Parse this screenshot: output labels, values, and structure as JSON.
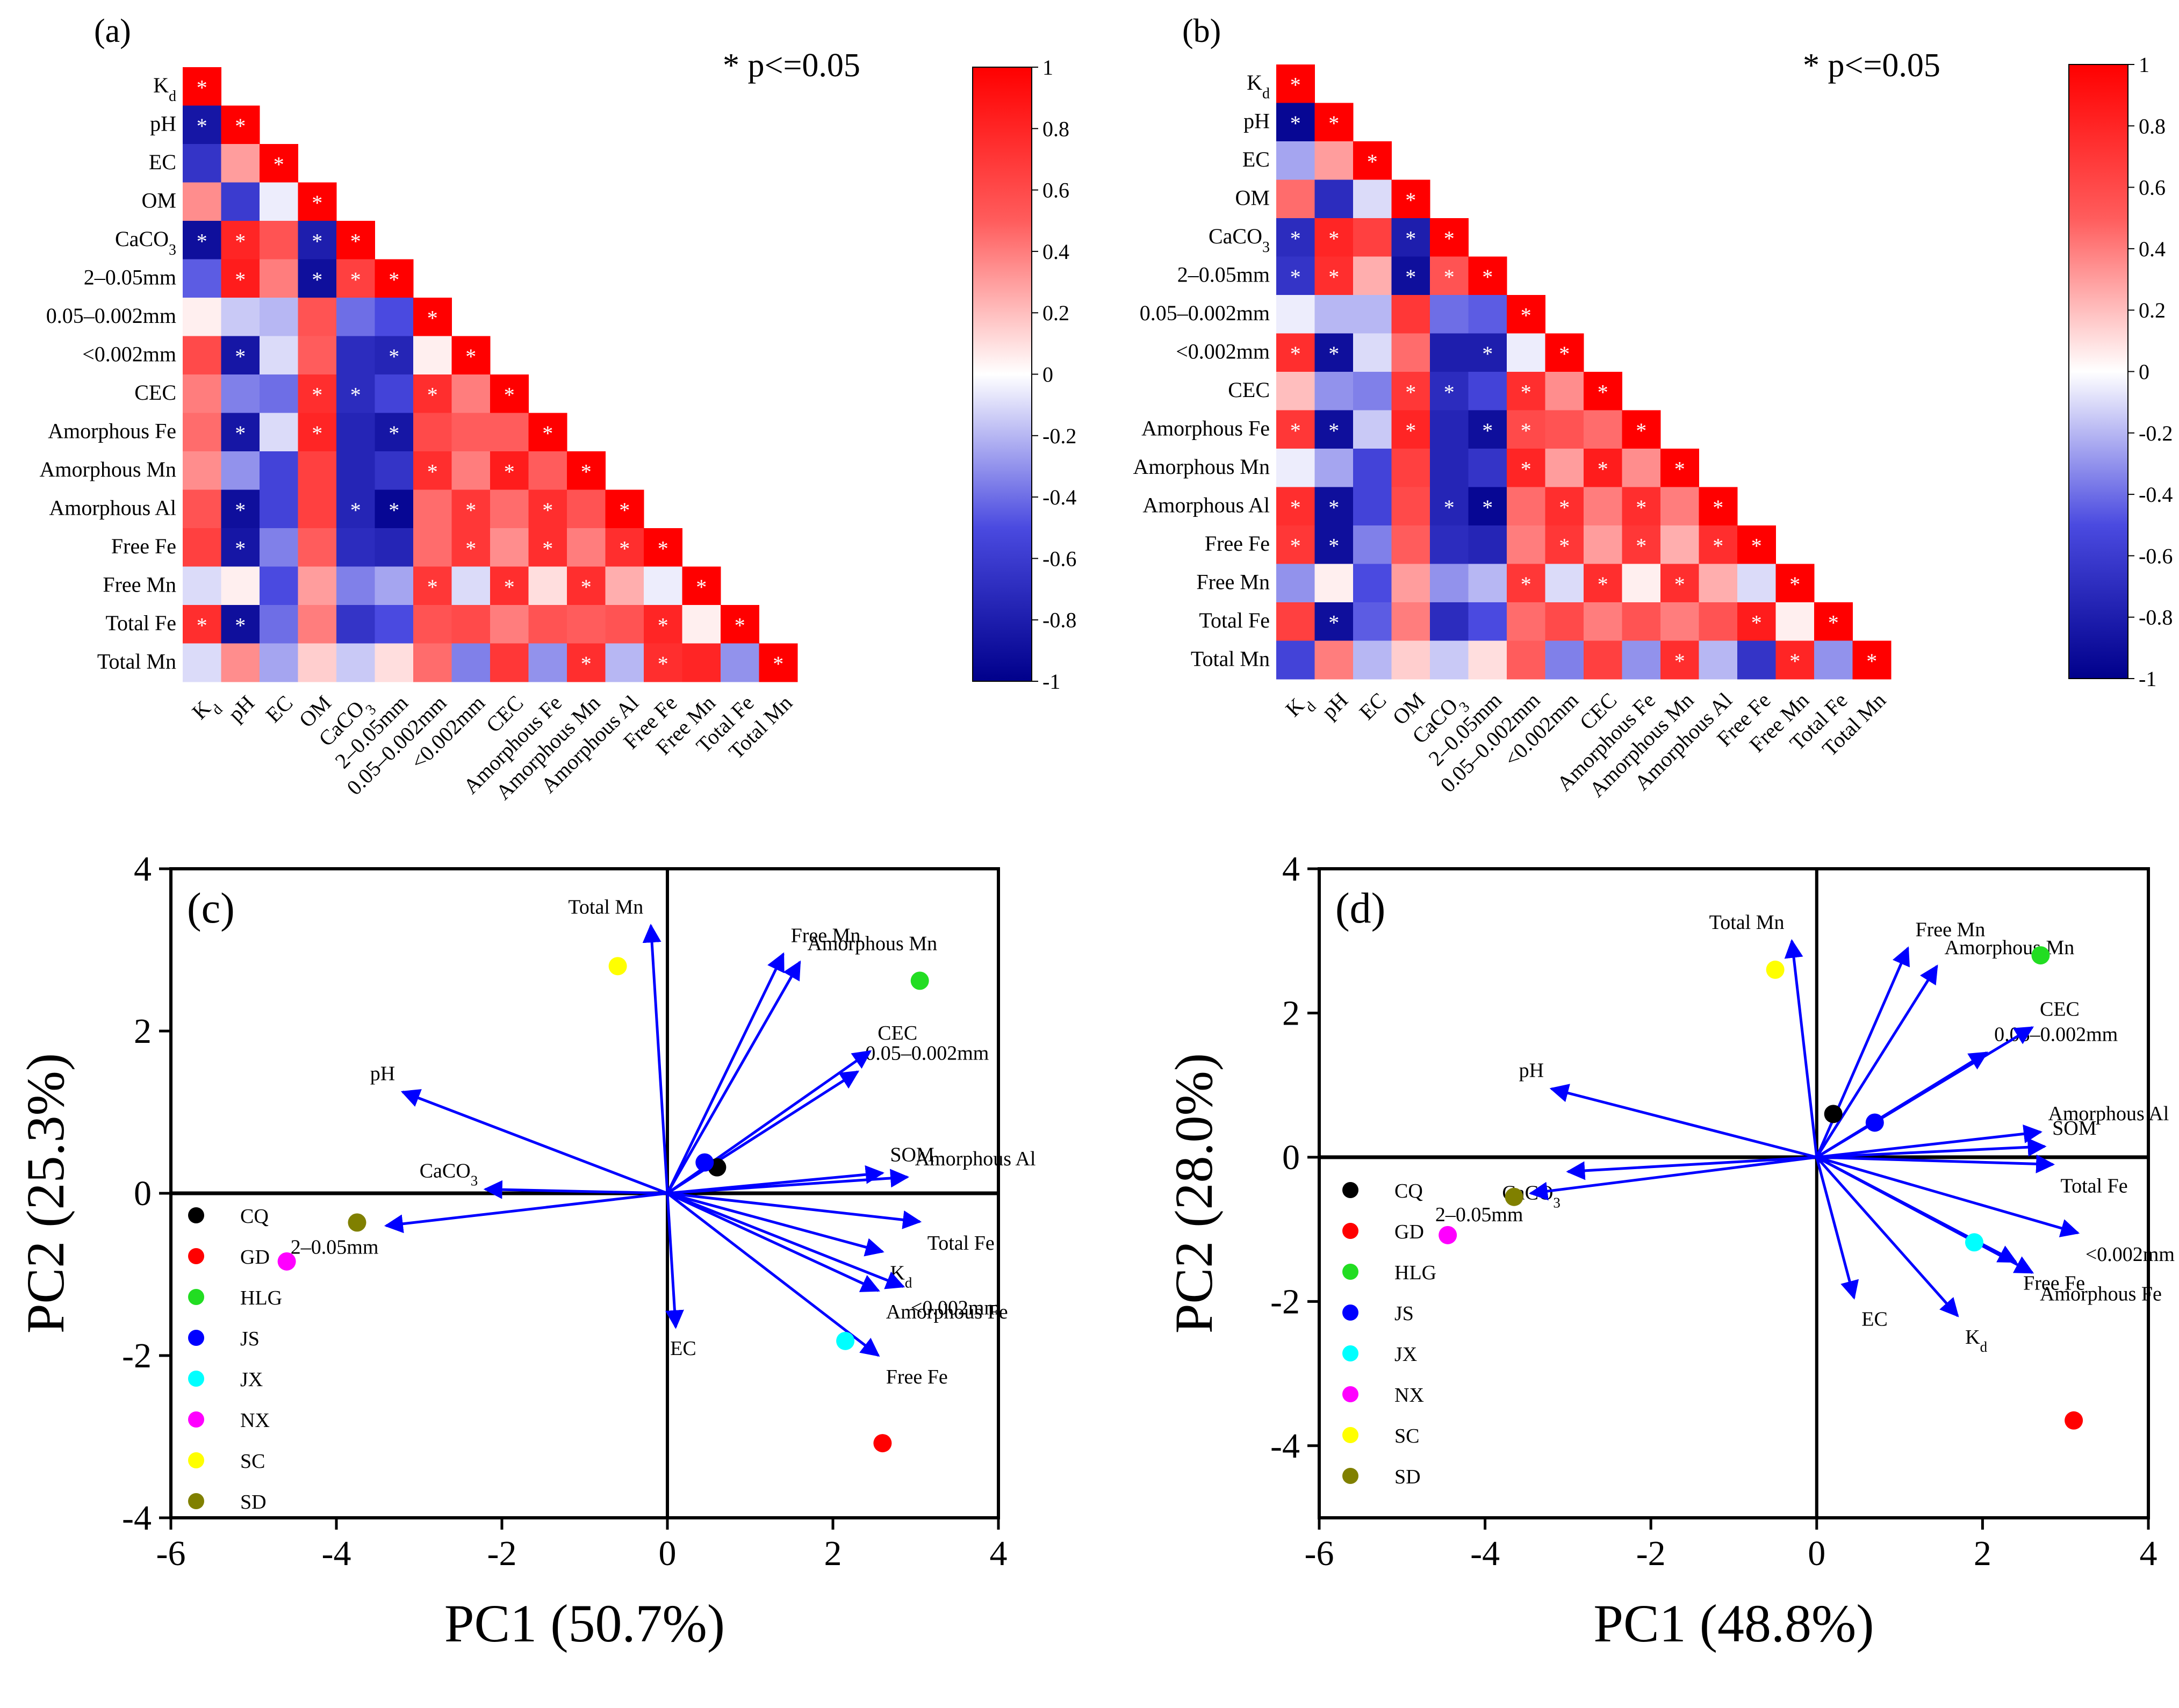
{
  "chart_data": [
    {
      "panel": "(a)",
      "type": "heatmap",
      "significance_note": "* p<=0.05",
      "variables": [
        "K_d",
        "pH",
        "EC",
        "OM",
        "CaCO_3",
        "2–0.05mm",
        "0.05–0.002mm",
        "<0.002mm",
        "CEC",
        "Amorphous Fe",
        "Amorphous Mn",
        "Amorphous Al",
        "Free Fe",
        "Free Mn",
        "Total Fe",
        "Total Mn"
      ],
      "matrix": [
        [
          1
        ],
        [
          -0.85,
          1
        ],
        [
          -0.65,
          0.3,
          1
        ],
        [
          0.35,
          -0.6,
          -0.05,
          1
        ],
        [
          -0.9,
          0.8,
          0.55,
          -0.8,
          1
        ],
        [
          -0.45,
          0.85,
          0.4,
          -0.9,
          0.65,
          1
        ],
        [
          0.05,
          -0.15,
          -0.2,
          0.55,
          -0.4,
          -0.5,
          1
        ],
        [
          0.6,
          -0.85,
          -0.1,
          0.5,
          -0.7,
          -0.75,
          0.05,
          1
        ],
        [
          0.4,
          -0.35,
          -0.4,
          0.75,
          -0.7,
          -0.55,
          0.75,
          0.4,
          1
        ],
        [
          0.45,
          -0.85,
          -0.1,
          0.8,
          -0.75,
          -0.85,
          0.6,
          0.5,
          0.5,
          1
        ],
        [
          0.35,
          -0.3,
          -0.55,
          0.65,
          -0.75,
          -0.65,
          0.75,
          0.4,
          0.85,
          0.5,
          1
        ],
        [
          0.55,
          -0.9,
          -0.55,
          0.65,
          -0.75,
          -0.95,
          0.45,
          0.7,
          0.45,
          0.75,
          0.55,
          1
        ],
        [
          0.65,
          -0.85,
          -0.35,
          0.5,
          -0.7,
          -0.75,
          0.45,
          0.7,
          0.35,
          0.75,
          0.4,
          0.75,
          1
        ],
        [
          -0.1,
          0.05,
          -0.5,
          0.3,
          -0.35,
          -0.25,
          0.7,
          -0.1,
          0.75,
          0.1,
          0.75,
          0.25,
          -0.05,
          1
        ],
        [
          0.75,
          -0.9,
          -0.4,
          0.4,
          -0.65,
          -0.5,
          0.55,
          0.6,
          0.4,
          0.55,
          0.5,
          0.55,
          0.8,
          0.05,
          1
        ],
        [
          -0.1,
          0.35,
          -0.25,
          0.15,
          -0.15,
          0.1,
          0.45,
          -0.35,
          0.7,
          -0.3,
          0.75,
          -0.2,
          0.75,
          0.8,
          -0.3,
          1
        ]
      ],
      "significant": [
        [
          1
        ],
        [
          1,
          1
        ],
        [
          0,
          0,
          1
        ],
        [
          0,
          0,
          0,
          1
        ],
        [
          1,
          1,
          0,
          1,
          1
        ],
        [
          0,
          1,
          0,
          1,
          1,
          1
        ],
        [
          0,
          0,
          0,
          0,
          0,
          0,
          1
        ],
        [
          0,
          1,
          0,
          0,
          0,
          1,
          0,
          1
        ],
        [
          0,
          0,
          0,
          1,
          1,
          0,
          1,
          0,
          1
        ],
        [
          0,
          1,
          0,
          1,
          0,
          1,
          0,
          0,
          0,
          1
        ],
        [
          0,
          0,
          0,
          0,
          0,
          0,
          1,
          0,
          1,
          0,
          1
        ],
        [
          0,
          1,
          0,
          0,
          1,
          1,
          0,
          1,
          0,
          1,
          0,
          1
        ],
        [
          0,
          1,
          0,
          0,
          0,
          0,
          0,
          1,
          0,
          1,
          0,
          1,
          1
        ],
        [
          0,
          0,
          0,
          0,
          0,
          0,
          1,
          0,
          1,
          0,
          1,
          0,
          0,
          1
        ],
        [
          1,
          1,
          0,
          0,
          0,
          0,
          0,
          0,
          0,
          0,
          0,
          0,
          1,
          0,
          1
        ],
        [
          0,
          0,
          0,
          0,
          0,
          0,
          0,
          0,
          0,
          0,
          1,
          0,
          1,
          0,
          0,
          1
        ]
      ],
      "colorbar_ticks": [
        "1",
        "0.8",
        "0.6",
        "0.4",
        "0.2",
        "0",
        "-0.2",
        "-0.4",
        "-0.6",
        "-0.8",
        "-1"
      ],
      "color_scale": {
        "negative": "#00008b",
        "mid_negative": "#4a4ae0",
        "zero": "#ffffff",
        "mid_positive": "#ff5c5c",
        "positive": "#ff0000"
      }
    },
    {
      "panel": "(b)",
      "type": "heatmap",
      "significance_note": "* p<=0.05",
      "variables": [
        "K_d",
        "pH",
        "EC",
        "OM",
        "CaCO_3",
        "2–0.05mm",
        "0.05–0.002mm",
        "<0.002mm",
        "CEC",
        "Amorphous Fe",
        "Amorphous Mn",
        "Amorphous Al",
        "Free Fe",
        "Free Mn",
        "Total Fe",
        "Total Mn"
      ],
      "matrix": [
        [
          1
        ],
        [
          -0.95,
          1
        ],
        [
          -0.25,
          0.3,
          1
        ],
        [
          0.45,
          -0.7,
          -0.1,
          1
        ],
        [
          -0.7,
          0.8,
          0.65,
          -0.8,
          1
        ],
        [
          -0.65,
          0.75,
          0.25,
          -0.9,
          0.55,
          1
        ],
        [
          -0.05,
          -0.2,
          -0.2,
          0.7,
          -0.4,
          -0.45,
          1
        ],
        [
          0.75,
          -0.9,
          -0.1,
          0.45,
          -0.8,
          -0.8,
          -0.05,
          1
        ],
        [
          0.2,
          -0.3,
          -0.35,
          0.7,
          -0.7,
          -0.55,
          0.75,
          0.35,
          1
        ],
        [
          0.7,
          -0.9,
          -0.15,
          0.8,
          -0.75,
          -0.9,
          0.6,
          0.55,
          0.45,
          1
        ],
        [
          -0.05,
          -0.25,
          -0.55,
          0.65,
          -0.75,
          -0.65,
          0.8,
          0.3,
          0.85,
          0.35,
          1
        ],
        [
          0.75,
          -0.9,
          -0.55,
          0.6,
          -0.75,
          -0.95,
          0.45,
          0.75,
          0.4,
          0.75,
          0.4,
          1
        ],
        [
          0.7,
          -0.9,
          -0.35,
          0.5,
          -0.7,
          -0.75,
          0.4,
          0.7,
          0.3,
          0.7,
          0.25,
          0.75,
          1
        ],
        [
          -0.3,
          0.05,
          -0.5,
          0.3,
          -0.3,
          -0.2,
          0.7,
          -0.1,
          0.75,
          0.05,
          0.75,
          0.25,
          -0.1,
          1
        ],
        [
          0.65,
          -0.9,
          -0.45,
          0.4,
          -0.7,
          -0.5,
          0.45,
          0.6,
          0.4,
          0.55,
          0.4,
          0.55,
          0.85,
          0.05,
          1
        ],
        [
          -0.55,
          0.4,
          -0.2,
          0.15,
          -0.15,
          0.1,
          0.5,
          -0.35,
          0.65,
          -0.3,
          0.75,
          -0.2,
          -0.65,
          0.8,
          -0.3,
          1
        ]
      ],
      "significant": [
        [
          1
        ],
        [
          1,
          1
        ],
        [
          0,
          0,
          1
        ],
        [
          0,
          0,
          0,
          1
        ],
        [
          1,
          1,
          0,
          1,
          1
        ],
        [
          1,
          1,
          0,
          1,
          1,
          1
        ],
        [
          0,
          0,
          0,
          0,
          0,
          0,
          1
        ],
        [
          1,
          1,
          0,
          0,
          0,
          1,
          0,
          1
        ],
        [
          0,
          0,
          0,
          1,
          1,
          0,
          1,
          0,
          1
        ],
        [
          1,
          1,
          0,
          1,
          0,
          1,
          1,
          0,
          0,
          1
        ],
        [
          0,
          0,
          0,
          0,
          0,
          0,
          1,
          0,
          1,
          0,
          1
        ],
        [
          1,
          1,
          0,
          0,
          1,
          1,
          0,
          1,
          0,
          1,
          0,
          1
        ],
        [
          1,
          1,
          0,
          0,
          0,
          0,
          0,
          1,
          0,
          1,
          0,
          1,
          1
        ],
        [
          0,
          0,
          0,
          0,
          0,
          0,
          1,
          0,
          1,
          0,
          1,
          0,
          0,
          1
        ],
        [
          0,
          1,
          0,
          0,
          0,
          0,
          0,
          0,
          0,
          0,
          0,
          0,
          1,
          0,
          1
        ],
        [
          0,
          0,
          0,
          0,
          0,
          0,
          0,
          0,
          0,
          0,
          1,
          0,
          0,
          1,
          0,
          1
        ]
      ],
      "colorbar_ticks": [
        "1",
        "0.8",
        "0.6",
        "0.4",
        "0.2",
        "0",
        "-0.2",
        "-0.4",
        "-0.6",
        "-0.8",
        "-1"
      ],
      "color_scale": {
        "negative": "#00008b",
        "mid_negative": "#4a4ae0",
        "zero": "#ffffff",
        "mid_positive": "#ff5c5c",
        "positive": "#ff0000"
      }
    },
    {
      "panel": "(c)",
      "type": "scatter",
      "subtype": "pca-biplot",
      "xlabel": "PC1 (50.7%)",
      "ylabel": "PC2 (25.3%)",
      "xlim": [
        -6,
        4
      ],
      "ylim": [
        -4,
        4
      ],
      "xticks": [
        -6,
        -4,
        -2,
        0,
        2,
        4
      ],
      "yticks": [
        -4,
        -2,
        0,
        2,
        4
      ],
      "points": [
        {
          "label": "CQ",
          "x": 0.6,
          "y": 0.32,
          "color": "#000000"
        },
        {
          "label": "GD",
          "x": 2.6,
          "y": -3.08,
          "color": "#ff0000"
        },
        {
          "label": "HLG",
          "x": 3.05,
          "y": 2.62,
          "color": "#22dd22"
        },
        {
          "label": "JS",
          "x": 0.45,
          "y": 0.38,
          "color": "#0000ff"
        },
        {
          "label": "JX",
          "x": 2.15,
          "y": -1.82,
          "color": "#00ffff"
        },
        {
          "label": "NX",
          "x": -4.6,
          "y": -0.84,
          "color": "#ff00ff"
        },
        {
          "label": "SC",
          "x": -0.6,
          "y": 2.8,
          "color": "#ffff00"
        },
        {
          "label": "SD",
          "x": -3.75,
          "y": -0.36,
          "color": "#808000"
        }
      ],
      "loadings": [
        {
          "label": "Total Mn",
          "x": -0.2,
          "y": 3.3
        },
        {
          "label": "Free Mn",
          "x": 1.4,
          "y": 2.95
        },
        {
          "label": "Amorphous Mn",
          "x": 1.6,
          "y": 2.85
        },
        {
          "label": "0.05–0.002mm",
          "x": 2.3,
          "y": 1.5
        },
        {
          "label": "CEC",
          "x": 2.45,
          "y": 1.75
        },
        {
          "label": "pH",
          "x": -3.2,
          "y": 1.25
        },
        {
          "label": "CaCO_3",
          "x": -2.2,
          "y": 0.05
        },
        {
          "label": "2–0.05mm",
          "x": -3.4,
          "y": -0.4
        },
        {
          "label": "SOM",
          "x": 2.6,
          "y": 0.25
        },
        {
          "label": "Amorphous Al",
          "x": 2.9,
          "y": 0.2
        },
        {
          "label": "Total Fe",
          "x": 3.05,
          "y": -0.35
        },
        {
          "label": "K_d",
          "x": 2.6,
          "y": -0.72
        },
        {
          "label": "<0.002mm",
          "x": 2.85,
          "y": -1.15
        },
        {
          "label": "Amorphous Fe",
          "x": 2.55,
          "y": -1.2
        },
        {
          "label": "Free Fe",
          "x": 2.55,
          "y": -2.0
        },
        {
          "label": "EC",
          "x": 0.1,
          "y": -1.65
        }
      ],
      "legend": [
        "CQ",
        "GD",
        "HLG",
        "JS",
        "JX",
        "NX",
        "SC",
        "SD"
      ]
    },
    {
      "panel": "(d)",
      "type": "scatter",
      "subtype": "pca-biplot",
      "xlabel": "PC1 (48.8%)",
      "ylabel": "PC2 (28.0%)",
      "xlim": [
        -6,
        4
      ],
      "ylim": [
        -5,
        4
      ],
      "xticks": [
        -6,
        -4,
        -2,
        0,
        2,
        4
      ],
      "yticks": [
        -4,
        -2,
        0,
        2,
        4
      ],
      "points": [
        {
          "label": "CQ",
          "x": 0.2,
          "y": 0.6,
          "color": "#000000"
        },
        {
          "label": "GD",
          "x": 3.1,
          "y": -3.65,
          "color": "#ff0000"
        },
        {
          "label": "HLG",
          "x": 2.7,
          "y": 2.8,
          "color": "#22dd22"
        },
        {
          "label": "JS",
          "x": 0.7,
          "y": 0.48,
          "color": "#0000ff"
        },
        {
          "label": "JX",
          "x": 1.9,
          "y": -1.18,
          "color": "#00ffff"
        },
        {
          "label": "NX",
          "x": -4.45,
          "y": -1.08,
          "color": "#ff00ff"
        },
        {
          "label": "SC",
          "x": -0.5,
          "y": 2.6,
          "color": "#ffff00"
        },
        {
          "label": "SD",
          "x": -3.65,
          "y": -0.55,
          "color": "#808000"
        }
      ],
      "loadings": [
        {
          "label": "Total Mn",
          "x": -0.3,
          "y": 3.0
        },
        {
          "label": "Free Mn",
          "x": 1.1,
          "y": 2.9
        },
        {
          "label": "Amorphous Mn",
          "x": 1.45,
          "y": 2.65
        },
        {
          "label": "0.05–0.002mm",
          "x": 2.05,
          "y": 1.45
        },
        {
          "label": "CEC",
          "x": 2.6,
          "y": 1.8
        },
        {
          "label": "pH",
          "x": -3.2,
          "y": 0.95
        },
        {
          "label": "CaCO_3",
          "x": -3.0,
          "y": -0.2
        },
        {
          "label": "2–0.05mm",
          "x": -3.45,
          "y": -0.5
        },
        {
          "label": "Amorphous Al",
          "x": 2.7,
          "y": 0.35
        },
        {
          "label": "SOM",
          "x": 2.75,
          "y": 0.15
        },
        {
          "label": "Total Fe",
          "x": 2.85,
          "y": -0.1
        },
        {
          "label": "<0.002mm",
          "x": 3.15,
          "y": -1.05
        },
        {
          "label": "Amorphous Fe",
          "x": 2.6,
          "y": -1.6
        },
        {
          "label": "Free Fe",
          "x": 2.4,
          "y": -1.45
        },
        {
          "label": "K_d",
          "x": 1.7,
          "y": -2.2
        },
        {
          "label": "EC",
          "x": 0.45,
          "y": -1.95
        }
      ],
      "legend": [
        "CQ",
        "GD",
        "HLG",
        "JS",
        "JX",
        "NX",
        "SC",
        "SD"
      ]
    }
  ]
}
